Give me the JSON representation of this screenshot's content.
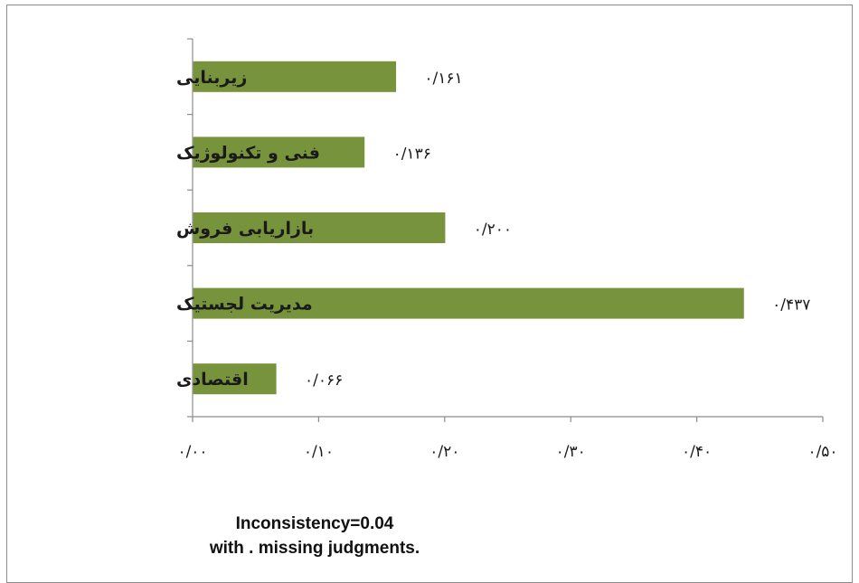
{
  "chart_data": {
    "type": "bar",
    "orientation": "horizontal",
    "categories": [
      "زیربنایی",
      "فنی و تکنولوژیک",
      "بازاریابی فروش",
      "مدیریت لجستیک",
      "اقتصادی"
    ],
    "values": [
      0.161,
      0.136,
      0.2,
      0.437,
      0.066
    ],
    "value_labels": [
      "۰/۱۶۱",
      "۰/۱۳۶",
      "۰/۲۰۰",
      "۰/۴۳۷",
      "۰/۰۶۶"
    ],
    "xlim": [
      0,
      0.5
    ],
    "x_ticks": [
      0,
      0.1,
      0.2,
      0.3,
      0.4,
      0.5
    ],
    "x_tick_labels": [
      "۰/۰۰",
      "۰/۱۰",
      "۰/۲۰",
      "۰/۳۰",
      "۰/۴۰",
      "۰/۵۰"
    ],
    "bar_color": "#77933c",
    "grid": false,
    "title": "",
    "xlabel": "",
    "ylabel": ""
  },
  "note": {
    "line1": "Inconsistency=0.04",
    "line2": "with . missing judgments."
  }
}
